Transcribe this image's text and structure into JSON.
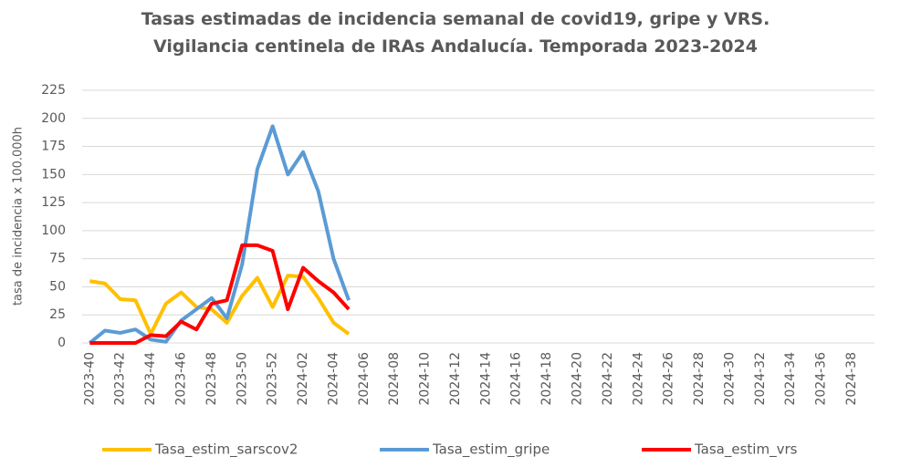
{
  "chart_data": {
    "type": "line",
    "title": "Tasas estimadas de incidencia semanal de covid19, gripe y VRS. Vigilancia centinela de IRAs Andalucía. Temporada 2023-2024",
    "y_label": "tasa de incidencia x 100.000h",
    "categories": [
      "2023-40",
      null,
      "2023-42",
      null,
      "2023-44",
      null,
      "2023-46",
      null,
      "2023-48",
      null,
      "2023-50",
      null,
      "2023-52",
      null,
      "2024-02",
      null,
      "2024-04",
      null,
      "2024-06",
      null,
      "2024-08",
      null,
      "2024-10",
      null,
      "2024-12",
      null,
      "2024-14",
      null,
      "2024-16",
      null,
      "2024-18",
      null,
      "2024-20",
      null,
      "2024-22",
      null,
      "2024-24",
      null,
      "2024-26",
      null,
      "2024-28",
      null,
      "2024-30",
      null,
      "2024-32",
      null,
      "2024-34",
      null,
      "2024-36",
      null,
      "2024-38",
      null
    ],
    "series": [
      {
        "name": "Tasa_estim_sarscov2",
        "color": "#ffc000",
        "values": [
          55,
          53,
          39,
          38,
          8,
          35,
          45,
          32,
          30,
          18,
          42,
          58,
          32,
          60,
          59,
          40,
          18,
          8,
          null,
          null,
          null,
          null,
          null,
          null,
          null,
          null,
          null,
          null,
          null,
          null,
          null,
          null,
          null,
          null,
          null,
          null,
          null,
          null,
          null,
          null,
          null,
          null,
          null,
          null,
          null,
          null,
          null,
          null,
          null,
          null,
          null,
          null
        ]
      },
      {
        "name": "Tasa_estim_gripe",
        "color": "#5b9bd5",
        "values": [
          0,
          11,
          9,
          12,
          3,
          1,
          20,
          30,
          40,
          22,
          70,
          155,
          193,
          150,
          170,
          135,
          75,
          38,
          null,
          null,
          null,
          null,
          null,
          null,
          null,
          null,
          null,
          null,
          null,
          null,
          null,
          null,
          null,
          null,
          null,
          null,
          null,
          null,
          null,
          null,
          null,
          null,
          null,
          null,
          null,
          null,
          null,
          null,
          null,
          null,
          null,
          null
        ]
      },
      {
        "name": "Tasa_estim_vrs",
        "color": "#ff0000",
        "values": [
          0,
          0,
          0,
          0,
          7,
          6,
          19,
          12,
          35,
          38,
          87,
          87,
          82,
          30,
          67,
          55,
          45,
          30,
          null,
          null,
          null,
          null,
          null,
          null,
          null,
          null,
          null,
          null,
          null,
          null,
          null,
          null,
          null,
          null,
          null,
          null,
          null,
          null,
          null,
          null,
          null,
          null,
          null,
          null,
          null,
          null,
          null,
          null,
          null,
          null,
          null,
          null
        ]
      }
    ],
    "ylim": [
      0,
      225
    ],
    "yticks": [
      0,
      25,
      50,
      75,
      100,
      125,
      150,
      175,
      200,
      225
    ],
    "grid": true,
    "legend": "bottom"
  }
}
